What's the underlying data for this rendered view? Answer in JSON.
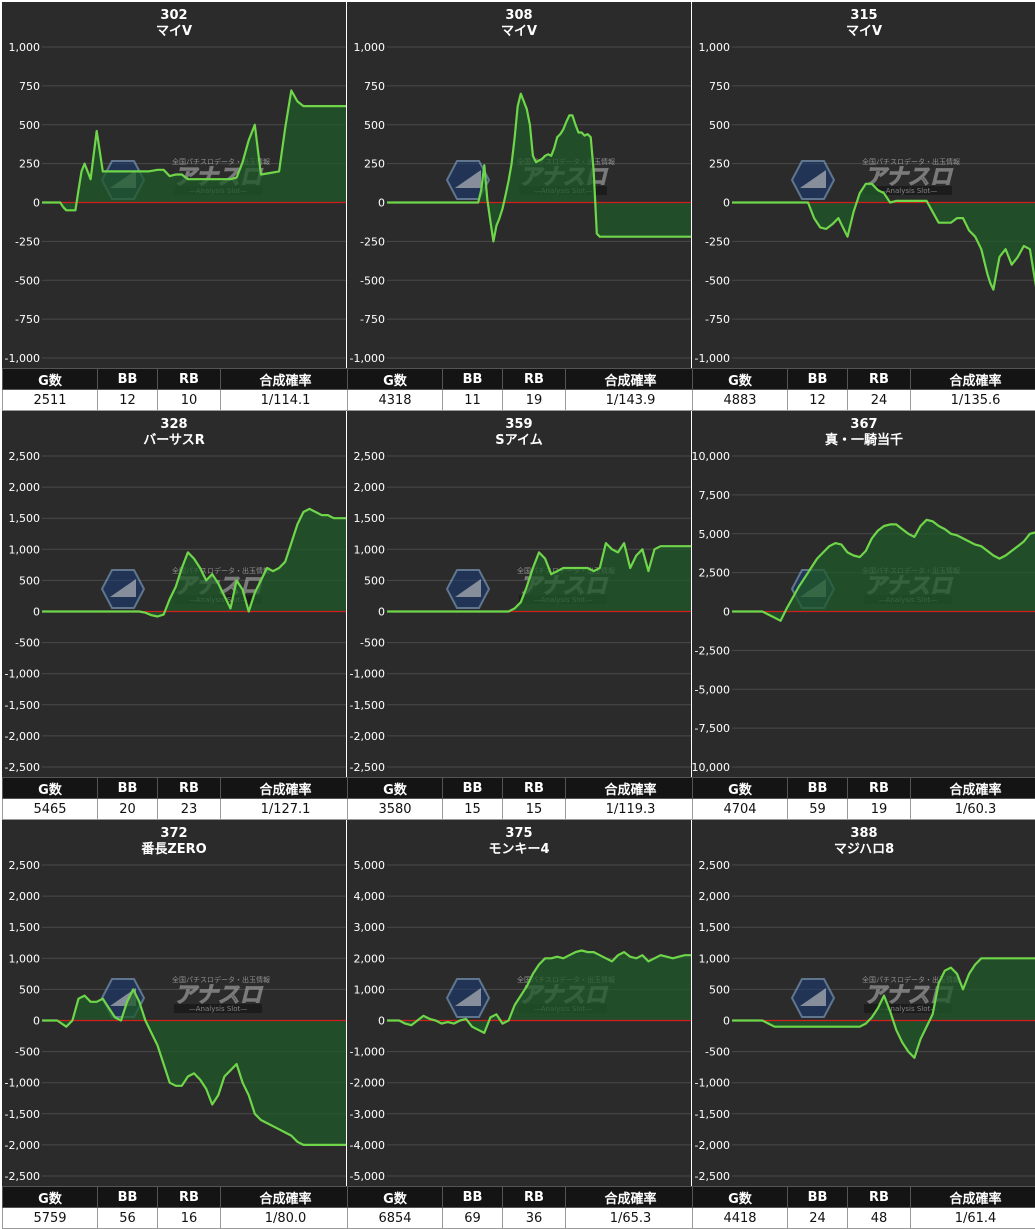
{
  "headers": {
    "g": "G数",
    "bb": "BB",
    "rb": "RB",
    "prob": "合成確率"
  },
  "colors": {
    "line": "#6fd64a",
    "fill": "#1f5a2a",
    "zero_line": "#d21e1e",
    "grid": "#4a4a4a",
    "background": "#2b2b2b"
  },
  "watermark": {
    "logo_icon": "hexagon-logo-icon",
    "text": "アナスロ",
    "top_line": "全国パチスロデータ・出玉情報",
    "sub": "—Analysis Slot—"
  },
  "machines": [
    {
      "number": "302",
      "name": "マイV",
      "stats": {
        "g": "2511",
        "bb": "12",
        "rb": "10",
        "prob": "1/114.1"
      },
      "chart_data": {
        "type": "area",
        "ylim": [
          -1000,
          1000
        ],
        "yticks": [
          -1000,
          -750,
          -500,
          -250,
          0,
          250,
          500,
          750,
          1000
        ],
        "ytick_labels": [
          "-1,000",
          "-750",
          "-500",
          "-250",
          "0",
          "250",
          "500",
          "750",
          "1,000"
        ],
        "x": [
          0,
          3,
          6,
          7,
          8,
          9,
          10,
          11,
          12,
          13,
          14,
          16,
          18,
          20,
          22,
          24,
          28,
          32,
          35,
          38,
          40,
          42,
          44,
          46,
          48,
          50,
          52,
          54,
          56,
          58,
          60,
          62,
          64,
          66,
          68,
          70,
          72,
          75,
          78,
          80,
          82,
          84,
          86,
          88,
          90,
          93,
          96,
          100
        ],
        "y": [
          0,
          0,
          0,
          -30,
          -50,
          -50,
          -50,
          -50,
          80,
          200,
          250,
          150,
          460,
          200,
          200,
          200,
          200,
          200,
          200,
          210,
          210,
          170,
          180,
          180,
          150,
          150,
          150,
          150,
          150,
          150,
          150,
          150,
          160,
          260,
          400,
          500,
          180,
          190,
          200,
          480,
          720,
          650,
          620,
          620,
          620,
          620,
          620,
          620
        ]
      }
    },
    {
      "number": "308",
      "name": "マイV",
      "stats": {
        "g": "4318",
        "bb": "11",
        "rb": "19",
        "prob": "1/143.9"
      },
      "chart_data": {
        "type": "area",
        "ylim": [
          -1000,
          1000
        ],
        "yticks": [
          -1000,
          -750,
          -500,
          -250,
          0,
          250,
          500,
          750,
          1000
        ],
        "ytick_labels": [
          "-1,000",
          "-750",
          "-500",
          "-250",
          "0",
          "250",
          "500",
          "750",
          "1,000"
        ],
        "x": [
          0,
          10,
          20,
          30,
          31,
          32,
          33,
          34,
          35,
          36,
          37,
          38,
          39,
          40,
          41,
          42,
          43,
          44,
          45,
          46,
          47,
          48,
          49,
          50,
          51,
          52,
          53,
          54,
          55,
          56,
          57,
          58,
          59,
          60,
          61,
          62,
          63,
          64,
          65,
          66,
          67,
          68,
          69,
          70,
          71,
          75,
          80,
          85,
          90,
          95,
          100
        ],
        "y": [
          0,
          0,
          0,
          0,
          80,
          240,
          20,
          -120,
          -250,
          -150,
          -100,
          -40,
          50,
          140,
          250,
          420,
          620,
          700,
          650,
          600,
          500,
          300,
          260,
          270,
          280,
          300,
          310,
          300,
          350,
          420,
          440,
          470,
          520,
          560,
          560,
          500,
          450,
          450,
          430,
          440,
          420,
          200,
          -200,
          -220,
          -220,
          -220,
          -220,
          -220,
          -220,
          -220,
          -220
        ]
      }
    },
    {
      "number": "315",
      "name": "マイV",
      "stats": {
        "g": "4883",
        "bb": "12",
        "rb": "24",
        "prob": "1/135.6"
      },
      "chart_data": {
        "type": "area",
        "ylim": [
          -1000,
          1000
        ],
        "yticks": [
          -1000,
          -750,
          -500,
          -250,
          0,
          250,
          500,
          750,
          1000
        ],
        "ytick_labels": [
          "-1,000",
          "-750",
          "-500",
          "-250",
          "0",
          "250",
          "500",
          "750",
          "1,000"
        ],
        "x": [
          0,
          10,
          20,
          25,
          27,
          29,
          31,
          33,
          35,
          36,
          38,
          40,
          42,
          44,
          46,
          48,
          50,
          52,
          54,
          56,
          58,
          60,
          62,
          64,
          66,
          68,
          70,
          72,
          74,
          76,
          78,
          80,
          82,
          84,
          85,
          86,
          87,
          88,
          90,
          92,
          94,
          96,
          98,
          100
        ],
        "y": [
          0,
          0,
          0,
          0,
          -100,
          -160,
          -170,
          -140,
          -100,
          -140,
          -220,
          -60,
          60,
          120,
          120,
          80,
          60,
          0,
          10,
          10,
          10,
          10,
          10,
          10,
          -60,
          -130,
          -130,
          -130,
          -100,
          -100,
          -180,
          -220,
          -300,
          -460,
          -520,
          -560,
          -450,
          -350,
          -300,
          -400,
          -350,
          -280,
          -300,
          -540
        ]
      }
    },
    {
      "number": "328",
      "name": "バーサスR",
      "stats": {
        "g": "5465",
        "bb": "20",
        "rb": "23",
        "prob": "1/127.1"
      },
      "chart_data": {
        "type": "area",
        "ylim": [
          -2500,
          2500
        ],
        "yticks": [
          -2500,
          -2000,
          -1500,
          -1000,
          -500,
          0,
          500,
          1000,
          1500,
          2000,
          2500
        ],
        "ytick_labels": [
          "-2,500",
          "-2,000",
          "-1,500",
          "-1,000",
          "-500",
          "0",
          "500",
          "1,000",
          "1,500",
          "2,000",
          "2,500"
        ],
        "x": [
          0,
          10,
          20,
          30,
          32,
          34,
          36,
          38,
          40,
          42,
          44,
          46,
          48,
          50,
          52,
          54,
          56,
          58,
          60,
          62,
          64,
          66,
          68,
          70,
          72,
          74,
          76,
          78,
          80,
          82,
          84,
          86,
          88,
          90,
          92,
          94,
          96,
          98,
          100
        ],
        "y": [
          0,
          0,
          0,
          0,
          0,
          -20,
          -60,
          -80,
          -50,
          200,
          400,
          700,
          950,
          850,
          700,
          500,
          600,
          450,
          250,
          50,
          500,
          350,
          0,
          300,
          500,
          700,
          650,
          700,
          800,
          1100,
          1400,
          1600,
          1650,
          1600,
          1550,
          1550,
          1500,
          1500,
          1500
        ]
      }
    },
    {
      "number": "359",
      "name": "Sアイム",
      "stats": {
        "g": "3580",
        "bb": "15",
        "rb": "15",
        "prob": "1/119.3"
      },
      "chart_data": {
        "type": "area",
        "ylim": [
          -2500,
          2500
        ],
        "yticks": [
          -2500,
          -2000,
          -1500,
          -1000,
          -500,
          0,
          500,
          1000,
          1500,
          2000,
          2500
        ],
        "ytick_labels": [
          "-2,500",
          "-2,000",
          "-1,500",
          "-1,000",
          "-500",
          "0",
          "500",
          "1,000",
          "1,500",
          "2,000",
          "2,500"
        ],
        "x": [
          0,
          10,
          20,
          30,
          35,
          40,
          42,
          44,
          46,
          48,
          50,
          52,
          54,
          56,
          58,
          60,
          62,
          64,
          66,
          68,
          70,
          72,
          74,
          76,
          78,
          80,
          82,
          84,
          86,
          88,
          90,
          93,
          96,
          100
        ],
        "y": [
          0,
          0,
          0,
          0,
          0,
          0,
          50,
          150,
          400,
          700,
          950,
          850,
          600,
          650,
          700,
          700,
          700,
          700,
          700,
          650,
          700,
          1100,
          1000,
          950,
          1100,
          700,
          900,
          1000,
          650,
          1000,
          1050,
          1050,
          1050,
          1050
        ]
      }
    },
    {
      "number": "367",
      "name": "真・一騎当千",
      "stats": {
        "g": "4704",
        "bb": "59",
        "rb": "19",
        "prob": "1/60.3"
      },
      "chart_data": {
        "type": "area",
        "ylim": [
          -10000,
          10000
        ],
        "yticks": [
          -10000,
          -7500,
          -5000,
          -2500,
          0,
          2500,
          5000,
          7500,
          10000
        ],
        "ytick_labels": [
          "-10,000",
          "-7,500",
          "-5,000",
          "-2,500",
          "0",
          "2,500",
          "5,000",
          "7,500",
          "10,000"
        ],
        "x": [
          0,
          6,
          10,
          12,
          14,
          16,
          18,
          20,
          22,
          24,
          26,
          28,
          30,
          32,
          34,
          36,
          38,
          40,
          42,
          44,
          46,
          48,
          50,
          52,
          54,
          56,
          58,
          60,
          62,
          64,
          66,
          68,
          70,
          72,
          74,
          76,
          78,
          80,
          82,
          84,
          86,
          88,
          90,
          92,
          94,
          96,
          98,
          100
        ],
        "y": [
          0,
          0,
          0,
          -200,
          -400,
          -600,
          200,
          900,
          1600,
          2200,
          2800,
          3400,
          3800,
          4200,
          4400,
          4300,
          3800,
          3600,
          3500,
          3900,
          4700,
          5200,
          5500,
          5600,
          5600,
          5300,
          5000,
          4800,
          5500,
          5900,
          5800,
          5500,
          5300,
          5000,
          4900,
          4700,
          4500,
          4300,
          4200,
          3900,
          3600,
          3400,
          3600,
          3900,
          4200,
          4500,
          5000,
          5100
        ]
      }
    },
    {
      "number": "372",
      "name": "番長ZERO",
      "stats": {
        "g": "5759",
        "bb": "56",
        "rb": "16",
        "prob": "1/80.0"
      },
      "chart_data": {
        "type": "area",
        "ylim": [
          -2500,
          2500
        ],
        "yticks": [
          -2500,
          -2000,
          -1500,
          -1000,
          -500,
          0,
          500,
          1000,
          1500,
          2000,
          2500
        ],
        "ytick_labels": [
          "-2,500",
          "-2,000",
          "-1,500",
          "-1,000",
          "-500",
          "0",
          "500",
          "1,000",
          "1,500",
          "2,000",
          "2,500"
        ],
        "x": [
          0,
          5,
          8,
          10,
          12,
          14,
          16,
          18,
          20,
          22,
          24,
          26,
          28,
          30,
          32,
          34,
          36,
          38,
          40,
          42,
          44,
          46,
          48,
          50,
          52,
          54,
          56,
          58,
          60,
          62,
          64,
          66,
          68,
          70,
          72,
          74,
          76,
          78,
          80,
          82,
          84,
          86,
          88,
          90,
          92,
          94,
          96,
          98,
          100
        ],
        "y": [
          0,
          0,
          -100,
          0,
          350,
          400,
          300,
          300,
          350,
          200,
          50,
          0,
          300,
          500,
          300,
          0,
          -200,
          -400,
          -700,
          -1000,
          -1050,
          -1050,
          -900,
          -850,
          -950,
          -1100,
          -1350,
          -1200,
          -900,
          -800,
          -700,
          -1000,
          -1200,
          -1500,
          -1600,
          -1650,
          -1700,
          -1750,
          -1800,
          -1850,
          -1950,
          -2000,
          -2000,
          -2000,
          -2000,
          -2000,
          -2000,
          -2000,
          -2000
        ]
      }
    },
    {
      "number": "375",
      "name": "モンキー4",
      "stats": {
        "g": "6854",
        "bb": "69",
        "rb": "36",
        "prob": "1/65.3"
      },
      "chart_data": {
        "type": "area",
        "ylim": [
          -5000,
          5000
        ],
        "yticks": [
          -5000,
          -4000,
          -3000,
          -2000,
          -1000,
          0,
          1000,
          2000,
          3000,
          4000,
          5000
        ],
        "ytick_labels": [
          "-5,000",
          "-4,000",
          "-3,000",
          "-2,000",
          "-1,000",
          "0",
          "1,000",
          "2,000",
          "3,000",
          "4,000",
          "5,000"
        ],
        "x": [
          0,
          4,
          6,
          8,
          10,
          12,
          14,
          16,
          18,
          20,
          22,
          24,
          26,
          28,
          30,
          32,
          34,
          36,
          38,
          40,
          42,
          44,
          46,
          48,
          50,
          52,
          54,
          56,
          58,
          60,
          62,
          64,
          66,
          68,
          70,
          72,
          74,
          76,
          78,
          80,
          82,
          84,
          86,
          88,
          90,
          92,
          94,
          96,
          98,
          100
        ],
        "y": [
          0,
          0,
          -100,
          -150,
          0,
          150,
          50,
          0,
          -100,
          -50,
          -100,
          0,
          50,
          -200,
          -300,
          -400,
          100,
          200,
          -100,
          0,
          500,
          800,
          1100,
          1500,
          1800,
          2000,
          2000,
          2050,
          2000,
          2100,
          2200,
          2250,
          2200,
          2200,
          2100,
          2000,
          1900,
          2100,
          2200,
          2050,
          2000,
          2100,
          1900,
          2000,
          2100,
          2050,
          2000,
          2050,
          2100,
          2100
        ]
      }
    },
    {
      "number": "388",
      "name": "マジハロ8",
      "stats": {
        "g": "4418",
        "bb": "24",
        "rb": "48",
        "prob": "1/61.4"
      },
      "chart_data": {
        "type": "area",
        "ylim": [
          -2500,
          2500
        ],
        "yticks": [
          -2500,
          -2000,
          -1500,
          -1000,
          -500,
          0,
          500,
          1000,
          1500,
          2000,
          2500
        ],
        "ytick_labels": [
          "-2,500",
          "-2,000",
          "-1,500",
          "-1,000",
          "-500",
          "0",
          "500",
          "1,000",
          "1,500",
          "2,000",
          "2,500"
        ],
        "x": [
          0,
          6,
          10,
          12,
          14,
          16,
          20,
          24,
          28,
          32,
          36,
          40,
          42,
          44,
          46,
          48,
          50,
          52,
          54,
          56,
          58,
          60,
          62,
          64,
          66,
          68,
          70,
          72,
          74,
          76,
          78,
          80,
          82,
          84,
          86,
          88,
          90,
          92,
          94,
          96,
          98,
          100
        ],
        "y": [
          0,
          0,
          0,
          -50,
          -100,
          -100,
          -100,
          -100,
          -100,
          -100,
          -100,
          -100,
          -100,
          -50,
          50,
          200,
          400,
          150,
          -150,
          -350,
          -500,
          -600,
          -300,
          -100,
          100,
          600,
          800,
          850,
          750,
          500,
          750,
          900,
          1000,
          1000,
          1000,
          1000,
          1000,
          1000,
          1000,
          1000,
          1000,
          1000
        ]
      }
    }
  ]
}
